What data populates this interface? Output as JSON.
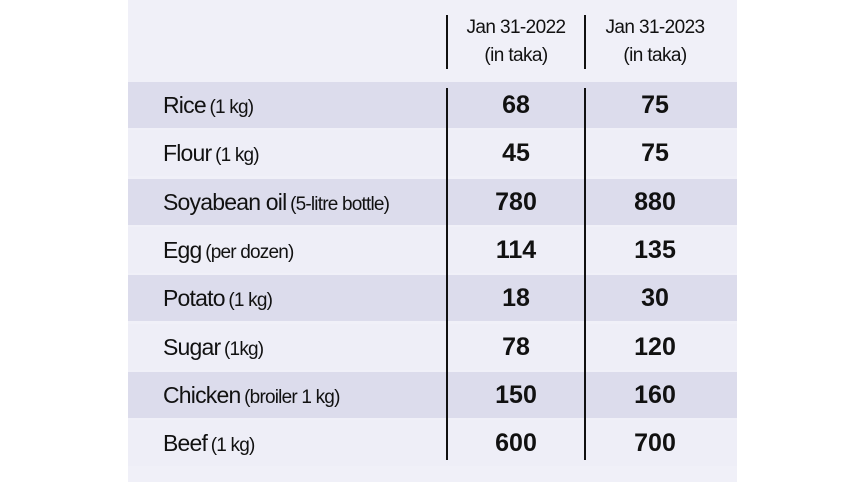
{
  "table": {
    "columns": [
      {
        "date": "Jan 31-2022",
        "unit": "(in taka)"
      },
      {
        "date": "Jan 31-2023",
        "unit": "(in taka)"
      }
    ],
    "rows": [
      {
        "item": "Rice",
        "unit": "(1 kg)",
        "values": [
          68,
          75
        ]
      },
      {
        "item": "Flour",
        "unit": "(1 kg)",
        "values": [
          45,
          75
        ]
      },
      {
        "item": "Soyabean oil",
        "unit": "(5-litre bottle)",
        "values": [
          780,
          880
        ]
      },
      {
        "item": "Egg",
        "unit": "(per dozen)",
        "values": [
          114,
          135
        ]
      },
      {
        "item": "Potato",
        "unit": "(1 kg)",
        "values": [
          18,
          30
        ]
      },
      {
        "item": "Sugar",
        "unit": "(1kg)",
        "values": [
          78,
          120
        ]
      },
      {
        "item": "Chicken",
        "unit": "(broiler 1 kg)",
        "values": [
          150,
          160
        ]
      },
      {
        "item": "Beef",
        "unit": "(1 kg)",
        "values": [
          600,
          700
        ]
      }
    ]
  }
}
